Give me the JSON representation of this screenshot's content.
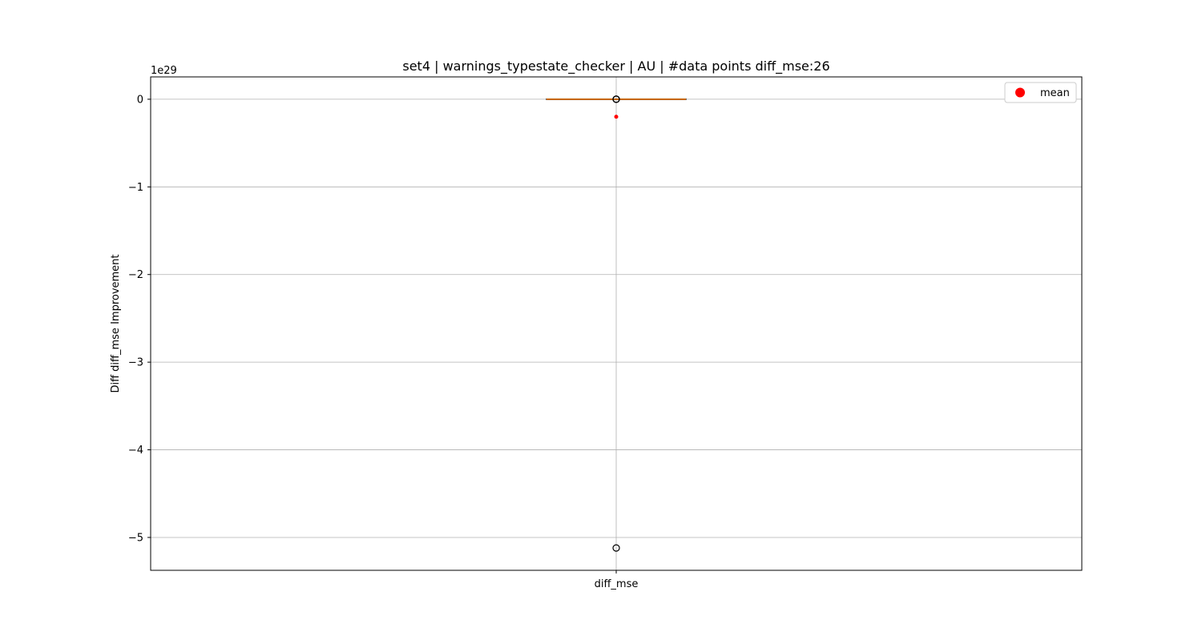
{
  "chart_data": {
    "type": "box",
    "title": "set4 | warnings_typestate_checker | AU | #data points diff_mse:26",
    "ylabel": "Diff diff_mse Improvement",
    "xlabel": "",
    "offset_label": "1e29",
    "scale_exponent": 29,
    "categories": [
      "diff_mse"
    ],
    "y_ticks": [
      0,
      -1,
      -2,
      -3,
      -4,
      -5
    ],
    "y_tick_labels": [
      "0",
      "−1",
      "−2",
      "−3",
      "−4",
      "−5"
    ],
    "ylim": [
      -5.375,
      0.255
    ],
    "grid": true,
    "legend": {
      "placement": "top-right",
      "entries": [
        "mean"
      ]
    },
    "box": {
      "median": 0,
      "q1": 0,
      "q3": 0,
      "whisker_low": 0,
      "whisker_high": 0,
      "mean": -0.2,
      "outliers": [
        0,
        0,
        0,
        -5.12
      ]
    },
    "colors": {
      "median": "#ff7f0e",
      "mean": "#ff0000",
      "grid": "#b0b0b0",
      "box": "#000000"
    }
  }
}
